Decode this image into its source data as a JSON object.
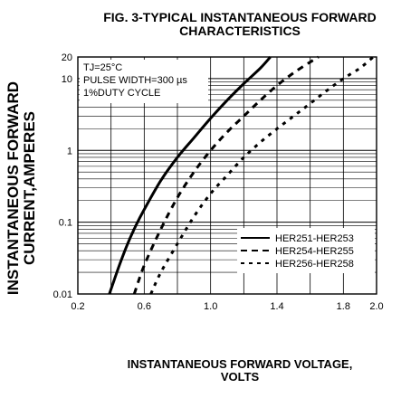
{
  "title_line1": "FIG. 3-TYPICAL INSTANTANEOUS FORWARD",
  "title_line2": "CHARACTERISTICS",
  "ylabel_line1": "INSTANTANEOUS FORWARD",
  "ylabel_line2": "CURRENT,AMPERES",
  "xlabel_line1": "INSTANTANEOUS FORWARD VOLTAGE,",
  "xlabel_line2": "VOLTS",
  "conditions": [
    "TJ=25°C",
    "PULSE WIDTH=300 µs",
    "1%DUTY CYCLE"
  ],
  "chart_data": {
    "type": "line",
    "x_axis": {
      "min": 0.2,
      "max": 2.0,
      "ticks": [
        0.2,
        0.6,
        1.0,
        1.4,
        1.8,
        2.0
      ],
      "tick_labels": [
        "0.2",
        "0.6",
        "1.0",
        "1.4",
        "1.8",
        "2.0"
      ],
      "minor_step": 0.2
    },
    "y_axis": {
      "scale": "log",
      "min": 0.01,
      "max": 20,
      "ticks": [
        0.01,
        0.1,
        1,
        10,
        20
      ],
      "tick_labels": [
        "0.01",
        "0.1",
        "1",
        "10",
        "20"
      ]
    },
    "grid": true,
    "legend_position": "bottom-right",
    "series": [
      {
        "name": "HER251-HER253",
        "style": "solid",
        "color": "#000000",
        "x": [
          0.39,
          0.45,
          0.5,
          0.55,
          0.6,
          0.7,
          0.8,
          0.9,
          1.0,
          1.1,
          1.2,
          1.3,
          1.36
        ],
        "y": [
          0.01,
          0.025,
          0.05,
          0.09,
          0.15,
          0.38,
          0.8,
          1.5,
          2.8,
          5.0,
          8.5,
          14,
          20
        ]
      },
      {
        "name": "HER254-HER255",
        "style": "dashed",
        "color": "#000000",
        "x": [
          0.54,
          0.6,
          0.7,
          0.8,
          0.9,
          1.0,
          1.1,
          1.2,
          1.3,
          1.4,
          1.5,
          1.6,
          1.65
        ],
        "y": [
          0.01,
          0.025,
          0.08,
          0.22,
          0.5,
          1.0,
          1.8,
          3.0,
          5.0,
          8.0,
          12,
          17,
          20
        ]
      },
      {
        "name": "HER256-HER258",
        "style": "dashed",
        "color": "#000000",
        "x": [
          0.64,
          0.7,
          0.8,
          0.9,
          1.0,
          1.1,
          1.2,
          1.3,
          1.4,
          1.5,
          1.6,
          1.7,
          1.8,
          1.9,
          1.98
        ],
        "y": [
          0.01,
          0.02,
          0.05,
          0.12,
          0.25,
          0.45,
          0.8,
          1.3,
          2.0,
          3.0,
          4.5,
          6.8,
          10,
          14,
          20
        ]
      }
    ]
  }
}
